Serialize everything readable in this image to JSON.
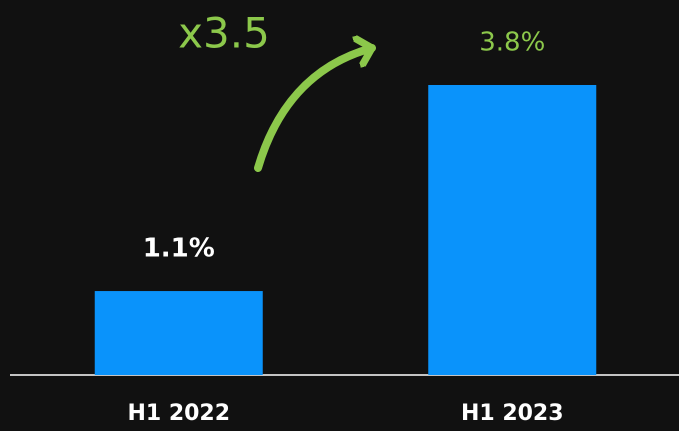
{
  "chart_data": {
    "type": "bar",
    "categories": [
      "H1 2022",
      "H1 2023"
    ],
    "values": [
      1.1,
      3.8
    ],
    "value_labels": [
      "1.1%",
      "3.8%"
    ],
    "value_label_colors": [
      "#ffffff",
      "#8cc84b"
    ],
    "color": "#0a93fb",
    "annotation": {
      "text": "x3.5",
      "color": "#8cc84b"
    }
  }
}
